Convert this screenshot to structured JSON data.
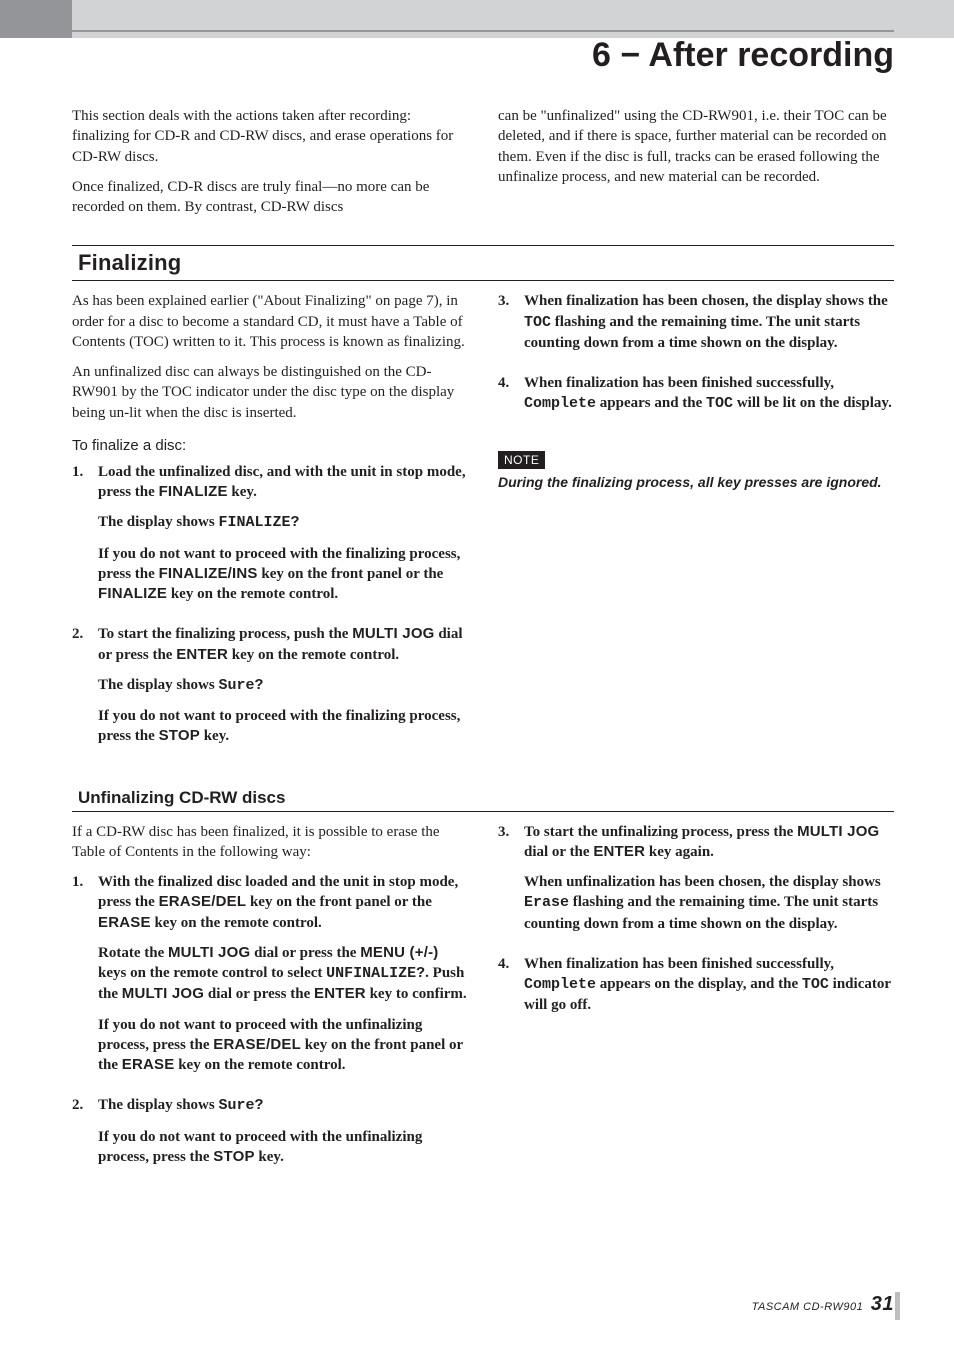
{
  "chapter": {
    "title": "6 − After recording"
  },
  "intro": {
    "left": [
      "This section deals with the actions taken after recording: finalizing for CD-R and CD-RW discs, and erase operations for CD-RW discs.",
      "Once finalized, CD-R discs are truly final—no more can be recorded on them. By contrast, CD-RW discs"
    ],
    "right": [
      "can be \"unfinalized\" using the CD-RW901, i.e. their TOC can be deleted, and if there is space, further material can be recorded on them. Even if the disc is full, tracks can be erased following the unfinalize process, and new material can be recorded."
    ]
  },
  "finalizing": {
    "heading": "Finalizing",
    "left_paras": [
      "As has been explained earlier (\"About Finalizing\" on page 7), in order for a disc to become a standard CD, it must have a Table of Contents (TOC) written to it. This process is known as finalizing.",
      "An unfinalized disc can always be distinguished on the CD-RW901 by the TOC indicator under the disc type on the display being un-lit when the disc is inserted."
    ],
    "subhead": "To finalize a disc:",
    "steps_left": [
      {
        "num": "1.",
        "lines": [
          {
            "segments": [
              {
                "t": "Load the unfinalized disc, and with the unit in stop mode, press the "
              },
              {
                "t": "FINALIZE",
                "cls": "key"
              },
              {
                "t": " key."
              }
            ]
          },
          {
            "segments": [
              {
                "t": "The display shows "
              },
              {
                "t": "FINALIZE?",
                "cls": "mono"
              }
            ]
          },
          {
            "segments": [
              {
                "t": "If you do not want to proceed with the finalizing process, press the "
              },
              {
                "t": "FINALIZE/INS",
                "cls": "key"
              },
              {
                "t": " key on the front panel or the "
              },
              {
                "t": "FINALIZE",
                "cls": "key"
              },
              {
                "t": " key on the remote control."
              }
            ]
          }
        ]
      },
      {
        "num": "2.",
        "lines": [
          {
            "segments": [
              {
                "t": "To start the finalizing process, push the "
              },
              {
                "t": "MULTI JOG",
                "cls": "key"
              },
              {
                "t": " dial or press the "
              },
              {
                "t": "ENTER",
                "cls": "key"
              },
              {
                "t": " key on the remote control."
              }
            ]
          },
          {
            "segments": [
              {
                "t": "The display shows "
              },
              {
                "t": "Sure?",
                "cls": "mono"
              }
            ]
          },
          {
            "segments": [
              {
                "t": "If you do not want to proceed with the finalizing process, press the "
              },
              {
                "t": "STOP",
                "cls": "key"
              },
              {
                "t": " key."
              }
            ]
          }
        ]
      }
    ],
    "steps_right": [
      {
        "num": "3.",
        "lines": [
          {
            "segments": [
              {
                "t": "When finalization has been chosen, the display shows the "
              },
              {
                "t": "TOC",
                "cls": "boldmono"
              },
              {
                "t": " flashing and the remaining time. The unit starts counting down from a time shown on the display."
              }
            ]
          }
        ]
      },
      {
        "num": "4.",
        "lines": [
          {
            "segments": [
              {
                "t": "When finalization has been finished successfully, "
              },
              {
                "t": "Complete",
                "cls": "mono"
              },
              {
                "t": " appears and the "
              },
              {
                "t": "TOC",
                "cls": "boldmono"
              },
              {
                "t": " will be lit on the display."
              }
            ]
          }
        ]
      }
    ],
    "note_label": "NOTE",
    "note_text": "During the finalizing process, all key presses are ignored."
  },
  "unfinalizing": {
    "heading": "Unfinalizing CD-RW discs",
    "left_intro": "If a CD-RW disc has been finalized, it is possible to erase the Table of Contents in the following way:",
    "steps_left": [
      {
        "num": "1.",
        "lines": [
          {
            "segments": [
              {
                "t": "With the finalized disc loaded and the unit in stop mode, press the "
              },
              {
                "t": "ERASE/DEL",
                "cls": "key"
              },
              {
                "t": " key on the front panel or the "
              },
              {
                "t": "ERASE",
                "cls": "key"
              },
              {
                "t": " key on the remote control."
              }
            ]
          },
          {
            "segments": [
              {
                "t": "Rotate the "
              },
              {
                "t": "MULTI JOG",
                "cls": "key"
              },
              {
                "t": " dial or press the "
              },
              {
                "t": "MENU (+/-)",
                "cls": "key"
              },
              {
                "t": " keys on the remote control to select "
              },
              {
                "t": "UNFINALIZE?",
                "cls": "mono"
              },
              {
                "t": ". Push the "
              },
              {
                "t": "MULTI JOG",
                "cls": "key"
              },
              {
                "t": " dial or press the "
              },
              {
                "t": "ENTER",
                "cls": "key"
              },
              {
                "t": " key to confirm."
              }
            ]
          },
          {
            "segments": [
              {
                "t": "If you do not want to proceed with the unfinalizing process, press the "
              },
              {
                "t": "ERASE/DEL",
                "cls": "key"
              },
              {
                "t": " key on the front panel or the "
              },
              {
                "t": "ERASE",
                "cls": "key"
              },
              {
                "t": " key on the remote control."
              }
            ]
          }
        ]
      },
      {
        "num": "2.",
        "lines": [
          {
            "segments": [
              {
                "t": "The display shows "
              },
              {
                "t": "Sure?",
                "cls": "mono"
              }
            ]
          },
          {
            "segments": [
              {
                "t": "If you do not want to proceed with the unfinalizing process, press the "
              },
              {
                "t": "STOP",
                "cls": "key"
              },
              {
                "t": " key."
              }
            ]
          }
        ]
      }
    ],
    "steps_right": [
      {
        "num": "3.",
        "lines": [
          {
            "segments": [
              {
                "t": "To start the unfinalizing process, press the "
              },
              {
                "t": "MULTI JOG",
                "cls": "key"
              },
              {
                "t": " dial or the "
              },
              {
                "t": "ENTER",
                "cls": "key"
              },
              {
                "t": " key again."
              }
            ]
          },
          {
            "segments": [
              {
                "t": "When unfinalization has been chosen, the display shows "
              },
              {
                "t": "Erase",
                "cls": "mono"
              },
              {
                "t": " flashing and the remaining time. The unit starts counting down from a time shown on the display."
              }
            ]
          }
        ]
      },
      {
        "num": "4.",
        "lines": [
          {
            "segments": [
              {
                "t": "When finalization has been finished successfully, "
              },
              {
                "t": "Complete",
                "cls": "mono"
              },
              {
                "t": " appears on the display, and the "
              },
              {
                "t": "TOC",
                "cls": "boldmono"
              },
              {
                "t": " indicator will go off."
              }
            ]
          }
        ]
      }
    ]
  },
  "footer": {
    "product": "TASCAM  CD-RW901",
    "page": "31"
  },
  "colors": {
    "topbar": "#d1d3d4",
    "topbar_left": "#939598",
    "text": "#231f20",
    "note_bg": "#231f20",
    "footer_rule": "#bcbec0"
  }
}
